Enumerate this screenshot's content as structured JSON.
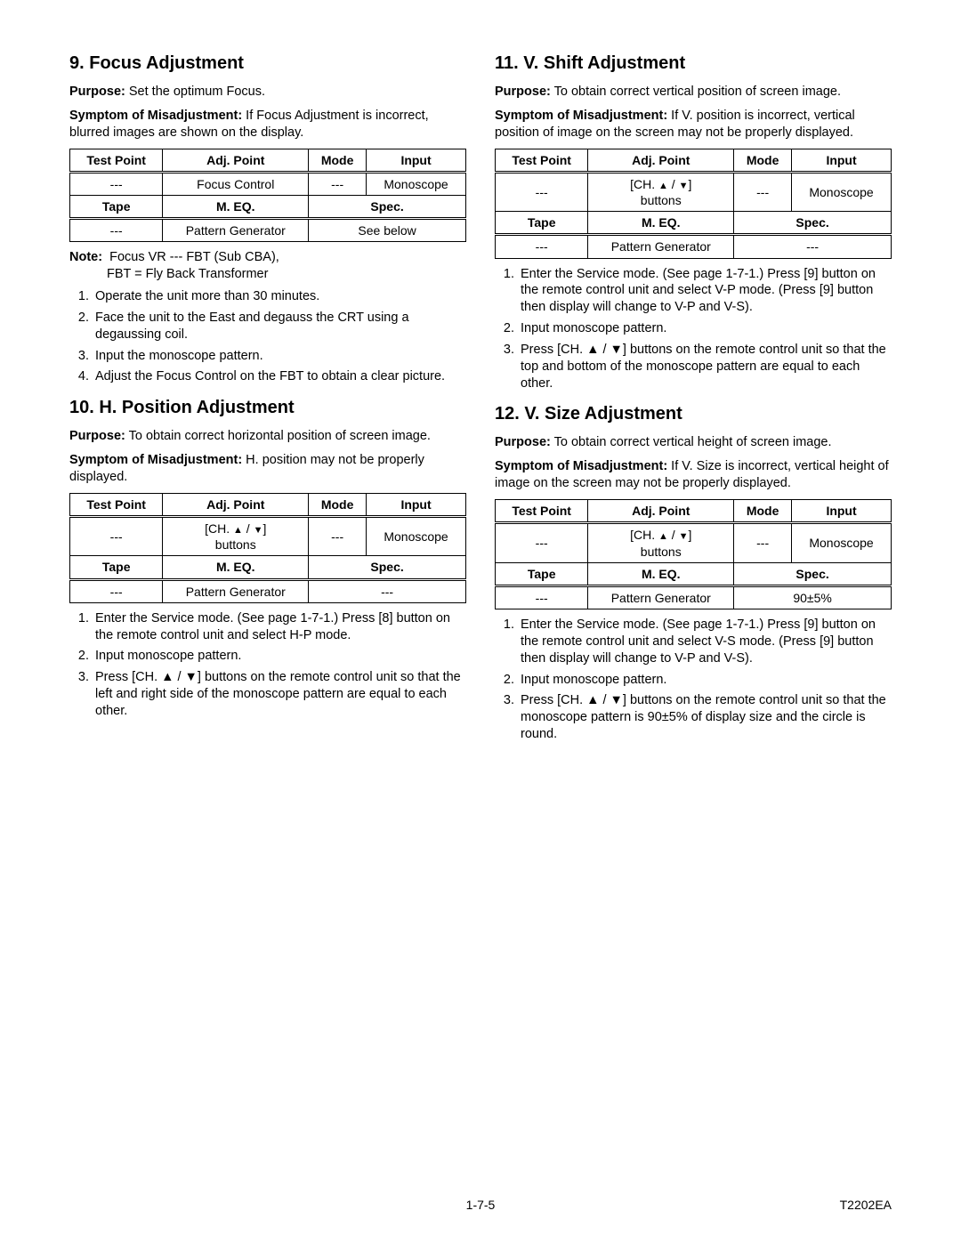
{
  "footer": {
    "page": "1-7-5",
    "doc": "T2202EA"
  },
  "ch_buttons": "[CH. ▲ / ▼] buttons",
  "s9": {
    "title": "9. Focus Adjustment",
    "purpose_label": "Purpose:",
    "purpose": " Set the optimum Focus.",
    "symptom_label": "Symptom of Misadjustment:",
    "symptom": " If Focus Adjustment is incorrect, blurred images are shown on the display.",
    "headers": {
      "tp": "Test Point",
      "ap": "Adj. Point",
      "mode": "Mode",
      "input": "Input",
      "tape": "Tape",
      "meq": "M. EQ.",
      "spec": "Spec."
    },
    "row1": {
      "tp": "---",
      "ap": "Focus Control",
      "mode": "---",
      "input": "Monoscope"
    },
    "row2": {
      "tp": "---",
      "ap": "Pattern Generator",
      "spec": "See below"
    },
    "note_label": "Note:",
    "note1": "Focus VR --- FBT (Sub CBA),",
    "note2": "FBT = Fly Back Transformer",
    "steps": [
      "Operate the unit more than 30 minutes.",
      "Face the unit to the East and degauss the CRT using a degaussing coil.",
      "Input the monoscope pattern.",
      "Adjust the Focus Control on the FBT to obtain a clear picture."
    ]
  },
  "s10": {
    "title": "10. H. Position Adjustment",
    "purpose_label": "Purpose:",
    "purpose": " To obtain correct horizontal position of screen image.",
    "symptom_label": "Symptom of Misadjustment:",
    "symptom": " H. position may not be properly displayed.",
    "headers": {
      "tp": "Test Point",
      "ap": "Adj. Point",
      "mode": "Mode",
      "input": "Input",
      "tape": "Tape",
      "meq": "M. EQ.",
      "spec": "Spec."
    },
    "row1": {
      "tp": "---",
      "mode": "---",
      "input": "Monoscope"
    },
    "row2": {
      "tp": "---",
      "ap": "Pattern Generator",
      "spec": "---"
    },
    "steps": [
      "Enter the Service mode. (See page 1-7-1.) Press [8] button on the remote control unit and select H-P mode.",
      "Input monoscope pattern.",
      "Press [CH. ▲ / ▼] buttons on the remote control unit so that the left and right side of the monoscope pattern are equal to each other."
    ]
  },
  "s11": {
    "title": "11. V. Shift Adjustment",
    "purpose_label": "Purpose:",
    "purpose": " To obtain correct vertical position of screen image.",
    "symptom_label": "Symptom of Misadjustment:",
    "symptom": " If V. position is incorrect, vertical position of image on the screen may not be properly displayed.",
    "headers": {
      "tp": "Test Point",
      "ap": "Adj. Point",
      "mode": "Mode",
      "input": "Input",
      "tape": "Tape",
      "meq": "M. EQ.",
      "spec": "Spec."
    },
    "row1": {
      "tp": "---",
      "mode": "---",
      "input": "Monoscope"
    },
    "row2": {
      "tp": "---",
      "ap": "Pattern Generator",
      "spec": "---"
    },
    "steps": [
      "Enter the Service mode. (See page 1-7-1.) Press [9] button on the remote control unit and select V-P mode. (Press [9] button then display will change to V-P and V-S).",
      "Input monoscope pattern.",
      "Press [CH. ▲ / ▼] buttons on the remote control unit so that the top and bottom of the monoscope pattern are equal to each other."
    ]
  },
  "s12": {
    "title": "12. V. Size Adjustment",
    "purpose_label": "Purpose:",
    "purpose": " To obtain correct vertical height of screen image.",
    "symptom_label": "Symptom of Misadjustment:",
    "symptom": " If V. Size is incorrect, vertical height of image on the screen may not be properly displayed.",
    "headers": {
      "tp": "Test Point",
      "ap": "Adj. Point",
      "mode": "Mode",
      "input": "Input",
      "tape": "Tape",
      "meq": "M. EQ.",
      "spec": "Spec."
    },
    "row1": {
      "tp": "---",
      "mode": "---",
      "input": "Monoscope"
    },
    "row2": {
      "tp": "---",
      "ap": "Pattern Generator",
      "spec": "90±5%"
    },
    "steps": [
      "Enter the Service mode. (See page 1-7-1.) Press [9] button on the remote control unit and select V-S mode. (Press [9] button then display will change to V-P and V-S).",
      "Input monoscope pattern.",
      "Press [CH. ▲ / ▼] buttons on the remote control unit so that the monoscope pattern is 90±5% of display size and the circle is round."
    ]
  }
}
